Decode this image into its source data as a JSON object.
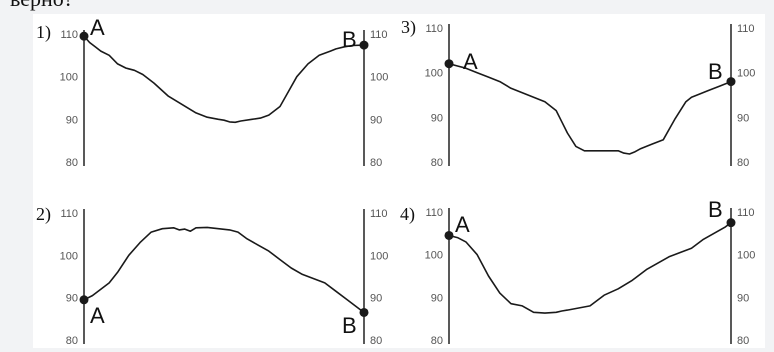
{
  "header": {
    "text": "верно?"
  },
  "chart_data": [
    {
      "type": "line",
      "label": "1)",
      "ylim": [
        80,
        110
      ],
      "yticks": [
        80,
        90,
        100,
        110
      ],
      "x": [
        0,
        2,
        4,
        6,
        9,
        12,
        15,
        18,
        21,
        25,
        30,
        35,
        40,
        44,
        48,
        50,
        52,
        54,
        56,
        60,
        63,
        66,
        70,
        73,
        76,
        80,
        84,
        88,
        90,
        93,
        96,
        100
      ],
      "y": [
        109.5,
        108,
        107,
        106,
        105,
        103,
        102,
        101.5,
        100.5,
        98.5,
        95.5,
        93.5,
        91.5,
        90.5,
        90,
        89.8,
        89.4,
        89.3,
        89.6,
        90,
        90.3,
        91,
        93,
        96.5,
        100,
        103,
        105,
        106,
        106.5,
        107,
        107.3,
        107.4
      ],
      "points": [
        {
          "name": "A",
          "x": 0,
          "y": 109.5
        },
        {
          "name": "B",
          "x": 100,
          "y": 107.4
        }
      ]
    },
    {
      "type": "line",
      "label": "2)",
      "ylim": [
        80,
        110
      ],
      "yticks": [
        80,
        90,
        100,
        110
      ],
      "x": [
        0,
        3,
        6,
        9,
        12,
        16,
        20,
        24,
        28,
        32,
        34,
        36,
        38,
        40,
        44,
        48,
        52,
        55,
        58,
        62,
        66,
        70,
        74,
        78,
        82,
        86,
        90,
        94,
        97,
        100
      ],
      "y": [
        89.5,
        90.5,
        92,
        93.5,
        96,
        100,
        103,
        105.5,
        106.3,
        106.5,
        106,
        106.2,
        105.7,
        106.5,
        106.6,
        106.3,
        106,
        105.5,
        104,
        102.5,
        101,
        99,
        97,
        95.5,
        94.5,
        93.5,
        91.5,
        89.5,
        88,
        86.5
      ],
      "points": [
        {
          "name": "A",
          "x": 0,
          "y": 89.5
        },
        {
          "name": "B",
          "x": 100,
          "y": 86.5
        }
      ]
    },
    {
      "type": "line",
      "label": "3)",
      "ylim": [
        80,
        110
      ],
      "yticks": [
        80,
        90,
        100,
        110
      ],
      "x": [
        0,
        3,
        6,
        10,
        14,
        18,
        22,
        26,
        30,
        34,
        38,
        40,
        42,
        45,
        48,
        52,
        56,
        60,
        62,
        64,
        66,
        68,
        70,
        72,
        76,
        80,
        84,
        86,
        88,
        90,
        92,
        96,
        100
      ],
      "y": [
        102,
        101.5,
        101,
        100,
        99,
        98,
        96.5,
        95.5,
        94.5,
        93.5,
        91.5,
        89,
        86.5,
        83.5,
        82.5,
        82.5,
        82.5,
        82.5,
        82,
        81.8,
        82.3,
        83,
        83.5,
        84,
        85,
        89.5,
        93.5,
        94.5,
        95,
        95.5,
        96,
        97,
        98
      ]
    },
    {
      "type": "line",
      "label": "4)",
      "ylim": [
        80,
        110
      ],
      "yticks": [
        80,
        90,
        100,
        110
      ],
      "x": [
        0,
        3,
        6,
        10,
        14,
        18,
        22,
        26,
        30,
        34,
        38,
        40,
        42,
        46,
        50,
        55,
        60,
        65,
        70,
        74,
        78,
        82,
        86,
        90,
        94,
        98,
        100
      ],
      "y": [
        104.5,
        104,
        103,
        100,
        95,
        91,
        88.5,
        88,
        86.5,
        86.3,
        86.5,
        86.8,
        87,
        87.5,
        88,
        90.5,
        92,
        94,
        96.5,
        98,
        99.5,
        100.5,
        101.5,
        103.5,
        105,
        106.5,
        107.5
      ],
      "points": [
        {
          "name": "A",
          "x": 0,
          "y": 104.5
        },
        {
          "name": "B",
          "x": 100,
          "y": 107.5
        }
      ]
    }
  ]
}
